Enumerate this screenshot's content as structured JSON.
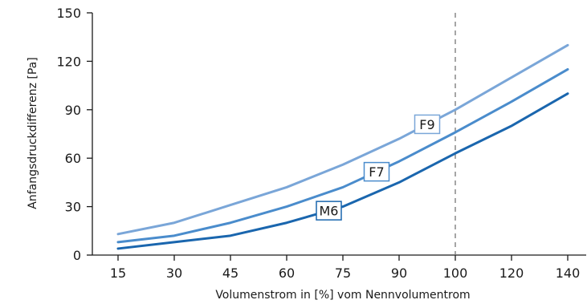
{
  "chart_data": {
    "type": "line",
    "xlabel": "Volumenstrom in [%] vom Nennvolumentrom",
    "ylabel": "Anfangsdruckdifferenz [Pa]",
    "categories": [
      "15",
      "30",
      "45",
      "60",
      "75",
      "90",
      "100",
      "120",
      "140"
    ],
    "ylim": [
      0,
      150
    ],
    "yticks": [
      "0",
      "30",
      "60",
      "90",
      "120",
      "150"
    ],
    "reference_line": {
      "x": "100",
      "style": "dashed"
    },
    "series": [
      {
        "name": "F9",
        "color": "#7aa6d8",
        "values": [
          13,
          20,
          31,
          42,
          56,
          72,
          90,
          110,
          130
        ]
      },
      {
        "name": "F7",
        "color": "#4a8ccc",
        "values": [
          8,
          12,
          20,
          30,
          42,
          58,
          76,
          95,
          115
        ]
      },
      {
        "name": "M6",
        "color": "#1a66ae",
        "values": [
          4,
          8,
          12,
          20,
          30,
          45,
          63,
          80,
          100
        ]
      }
    ],
    "grid": false,
    "legend": "inline-labels"
  }
}
